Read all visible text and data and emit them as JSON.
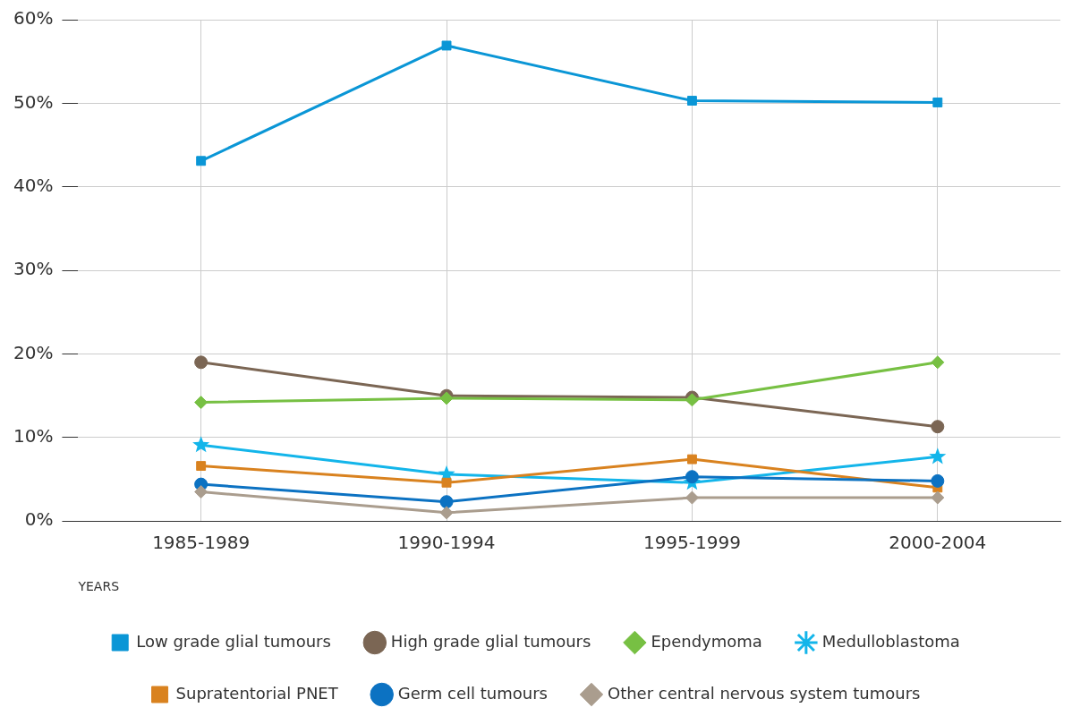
{
  "chart_data": {
    "type": "line",
    "xlabel": "YEARS",
    "categories": [
      "1985-1989",
      "1990-1994",
      "1995-1999",
      "2000-2004"
    ],
    "ylim": [
      0,
      60
    ],
    "yticks": [
      {
        "value": 0,
        "label": "0%"
      },
      {
        "value": 10,
        "label": "10%"
      },
      {
        "value": 20,
        "label": "20%"
      },
      {
        "value": 30,
        "label": "30%"
      },
      {
        "value": 40,
        "label": "40%"
      },
      {
        "value": 50,
        "label": "50%"
      },
      {
        "value": 60,
        "label": "60%"
      }
    ],
    "grid": true,
    "legend": "bottom",
    "series": [
      {
        "name": "Low grade glial tumours",
        "color": "#0a96d6",
        "marker": "square",
        "values": [
          43.1,
          56.9,
          50.3,
          50.1
        ]
      },
      {
        "name": "High grade glial tumours",
        "color": "#7b6654",
        "marker": "circle",
        "values": [
          19.0,
          15.0,
          14.8,
          11.3
        ]
      },
      {
        "name": "Ependymoma",
        "color": "#77c043",
        "marker": "diamond",
        "values": [
          14.2,
          14.7,
          14.5,
          19.0
        ]
      },
      {
        "name": "Medulloblastoma",
        "color": "#13b5ea",
        "marker": "star",
        "values": [
          9.1,
          5.6,
          4.6,
          7.7
        ]
      },
      {
        "name": "Supratentorial PNET",
        "color": "#d9821f",
        "marker": "square",
        "values": [
          6.6,
          4.6,
          7.4,
          4.0
        ]
      },
      {
        "name": "Germ cell tumours",
        "color": "#0c72c2",
        "marker": "circle",
        "values": [
          4.4,
          2.3,
          5.3,
          4.8
        ]
      },
      {
        "name": "Other central nervous system tumours",
        "color": "#aa9d8e",
        "marker": "diamond",
        "values": [
          3.5,
          1.0,
          2.8,
          2.8
        ]
      }
    ]
  }
}
